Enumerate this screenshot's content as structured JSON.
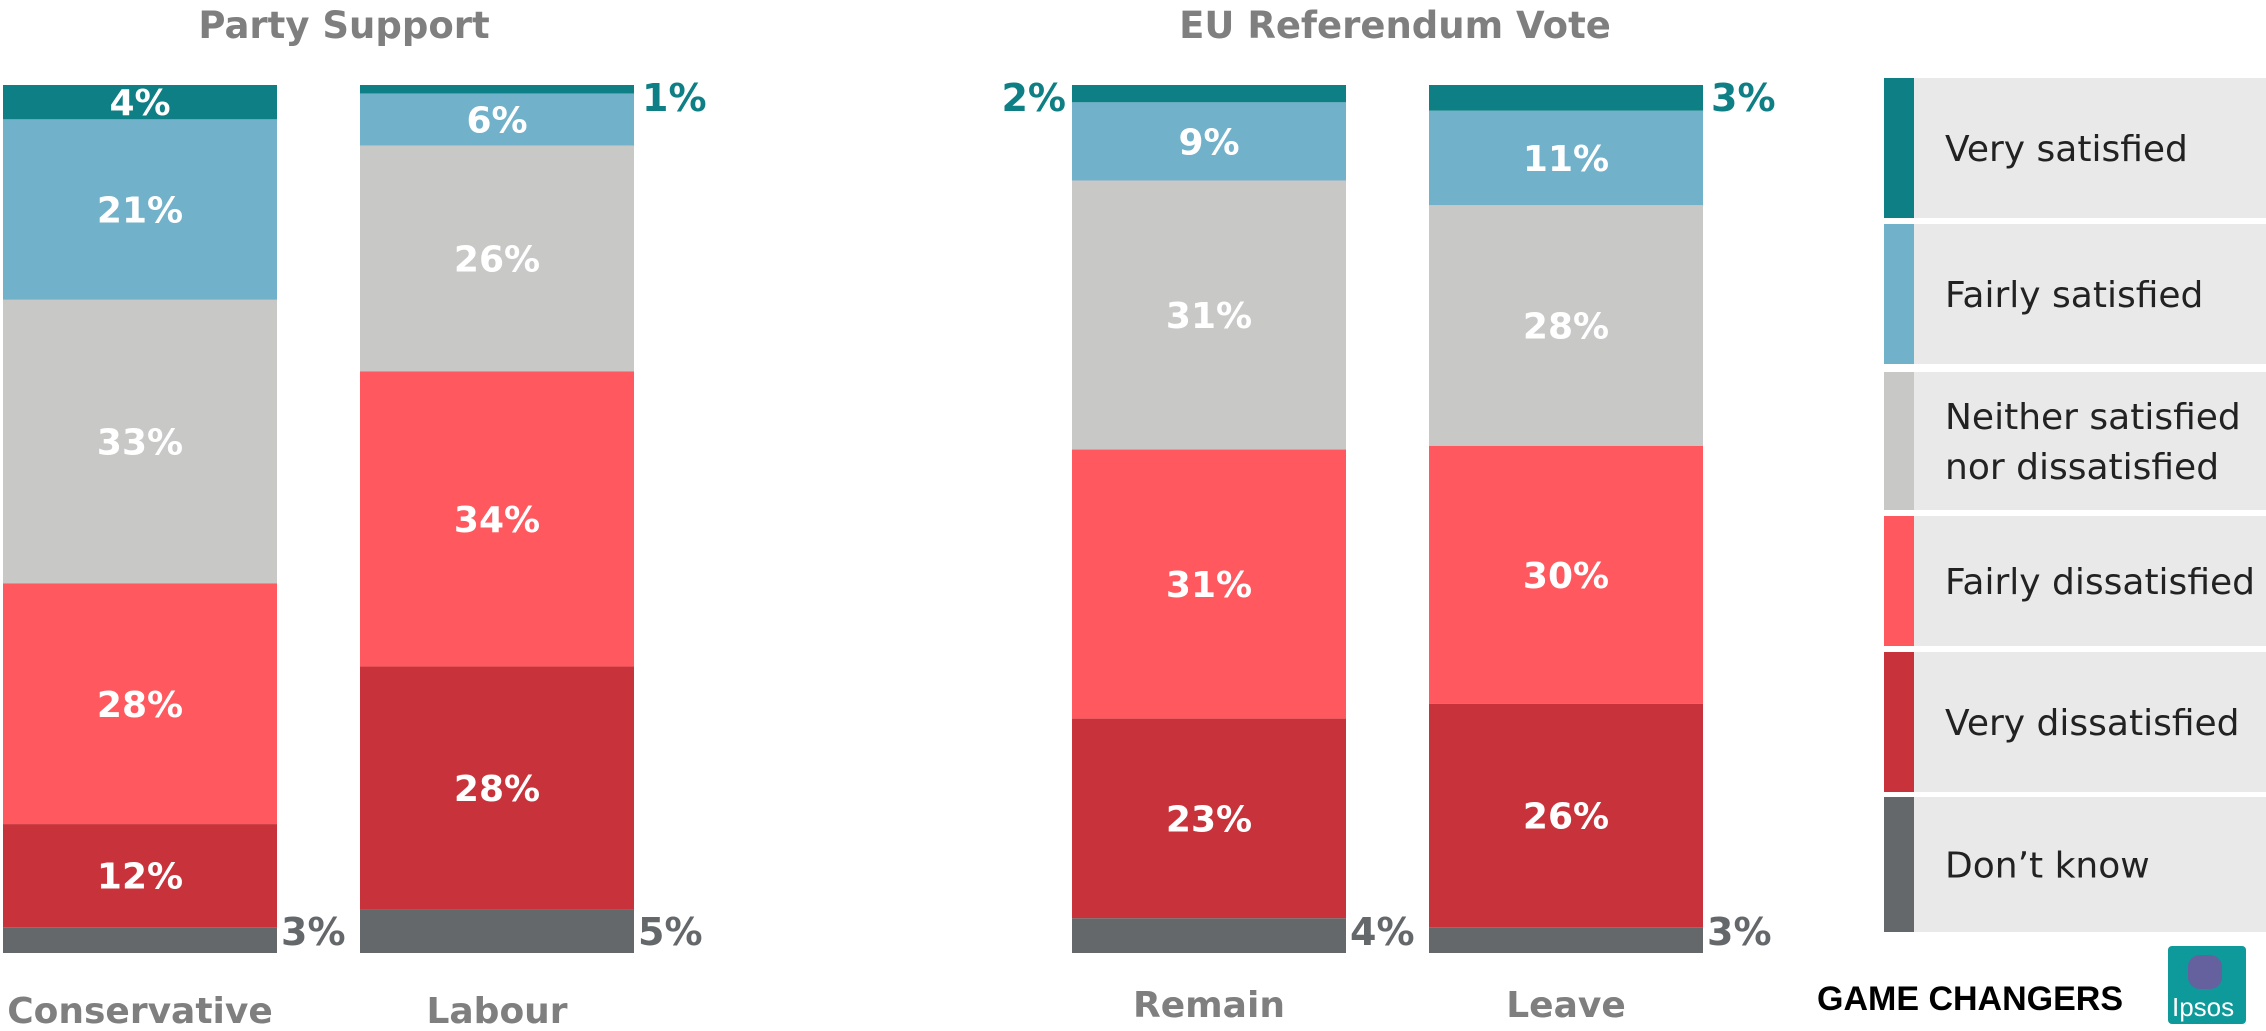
{
  "chart_data": {
    "type": "bar",
    "stacked": true,
    "groups": [
      {
        "title": "Party Support",
        "categories": [
          "Conservative",
          "Labour"
        ]
      },
      {
        "title": "EU Referendum Vote",
        "categories": [
          "Remain",
          "Leave"
        ]
      }
    ],
    "categories": [
      "Conservative",
      "Labour",
      "Remain",
      "Leave"
    ],
    "series": [
      {
        "name": "Very satisfied",
        "color": "#0e7f84",
        "values": [
          4,
          1,
          2,
          3
        ]
      },
      {
        "name": "Fairly satisfied",
        "color": "#71b1ca",
        "values": [
          21,
          6,
          9,
          11
        ]
      },
      {
        "name": "Neither satisfied nor dissatisfied",
        "color": "#c8c8c7",
        "values": [
          33,
          26,
          31,
          28
        ]
      },
      {
        "name": "Fairly dissatisfied",
        "color": "#ff585e",
        "values": [
          28,
          34,
          31,
          30
        ]
      },
      {
        "name": "Very dissatisfied",
        "color": "#c8323a",
        "values": [
          12,
          28,
          23,
          26
        ]
      },
      {
        "name": "Don’t know",
        "color": "#65686b",
        "values": [
          3,
          5,
          4,
          3
        ]
      }
    ],
    "labels": [
      [
        "4%",
        "21%",
        "33%",
        "28%",
        "12%",
        "3%"
      ],
      [
        "1%",
        "6%",
        "26%",
        "34%",
        "28%",
        "5%"
      ],
      [
        "2%",
        "9%",
        "31%",
        "31%",
        "23%",
        "4%"
      ],
      [
        "3%",
        "11%",
        "28%",
        "30%",
        "26%",
        "3%"
      ]
    ],
    "legend": {
      "position": "right",
      "lines": [
        [
          "Very satisfied"
        ],
        [
          "Fairly satisfied"
        ],
        [
          "Neither satisfied",
          "nor dissatisfied"
        ],
        [
          "Fairly dissatisfied"
        ],
        [
          "Very dissatisfied"
        ],
        [
          "Don’t know"
        ]
      ]
    },
    "ylim": [
      0,
      100
    ],
    "grid": false
  },
  "brand": {
    "tagline": "GAME CHANGERS",
    "logo": "Ipsos",
    "logo_color": "#0e9a9b"
  }
}
